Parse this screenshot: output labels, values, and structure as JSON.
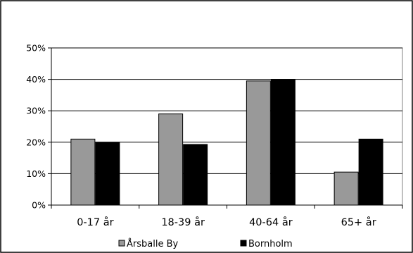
{
  "chart_data": {
    "type": "bar",
    "categories": [
      "0-17 år",
      "18-39 år",
      "40-64 år",
      "65+ år"
    ],
    "series": [
      {
        "name": "Årsballe By",
        "values": [
          21,
          29,
          39.5,
          10.5
        ],
        "color": "#999999"
      },
      {
        "name": "Bornholm",
        "values": [
          20,
          19.3,
          40,
          21
        ],
        "color": "#000000"
      }
    ],
    "ylim": [
      0,
      50
    ],
    "yticks": [
      "0%",
      "10%",
      "20%",
      "30%",
      "40%",
      "50%"
    ],
    "ytick_values": [
      0,
      10,
      20,
      30,
      40,
      50
    ],
    "grid": true,
    "legend": "bottom"
  }
}
